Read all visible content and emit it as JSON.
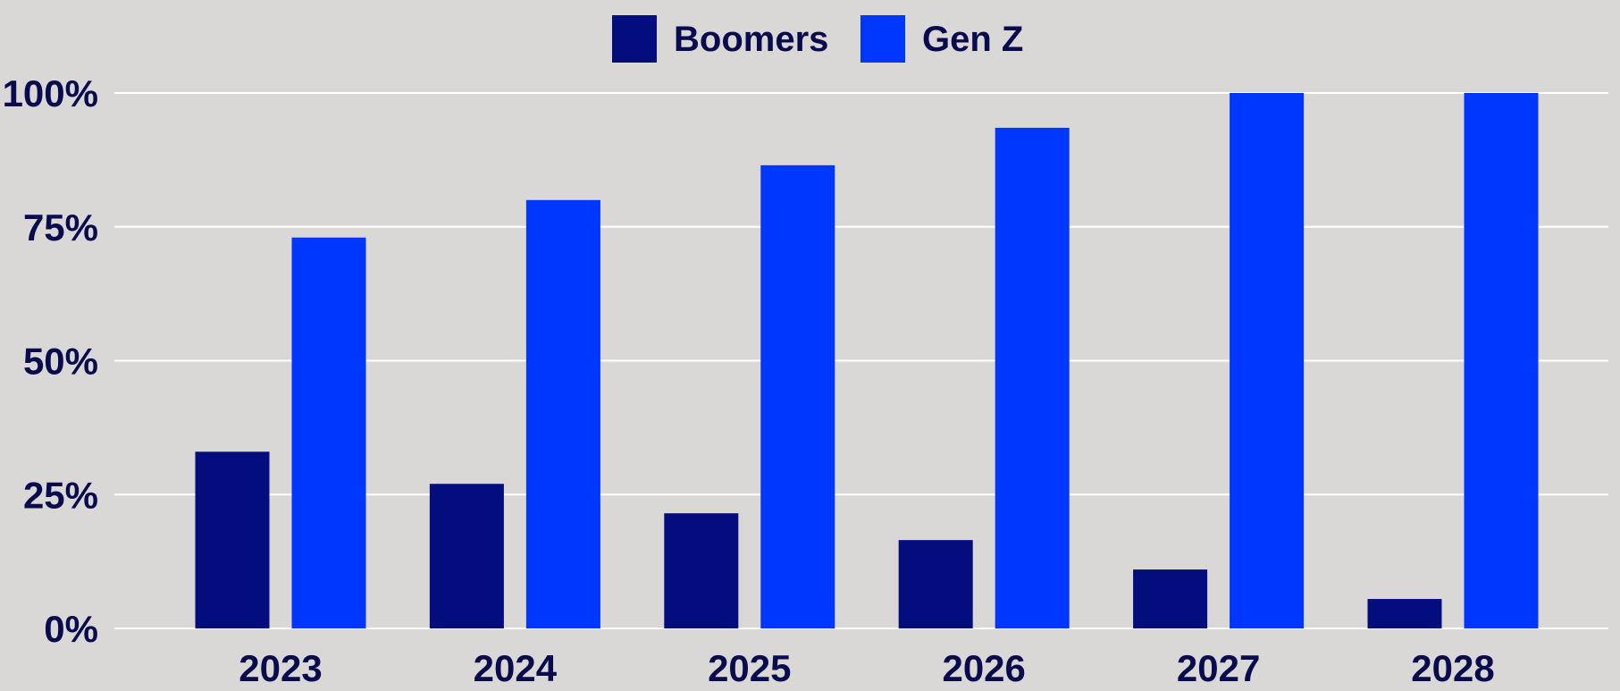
{
  "chart_data": {
    "type": "bar",
    "categories": [
      "2023",
      "2024",
      "2025",
      "2026",
      "2027",
      "2028"
    ],
    "series": [
      {
        "name": "Boomers",
        "values": [
          33,
          27,
          21.5,
          16.5,
          11,
          5.5
        ]
      },
      {
        "name": "Gen Z",
        "values": [
          73,
          80,
          86.5,
          93.5,
          100,
          100
        ]
      }
    ],
    "y_ticks": [
      "0%",
      "25%",
      "50%",
      "75%",
      "100%"
    ],
    "y_tick_values": [
      0,
      25,
      50,
      75,
      100
    ],
    "ylim": [
      0,
      100
    ],
    "grid": true,
    "legend_position": "top-center"
  },
  "colors": {
    "background": "#d9d8d7",
    "Boomers": "#040d7e",
    "Gen Z": "#0037ff",
    "gridline": "#ffffff",
    "text": "#0a0a4e"
  }
}
